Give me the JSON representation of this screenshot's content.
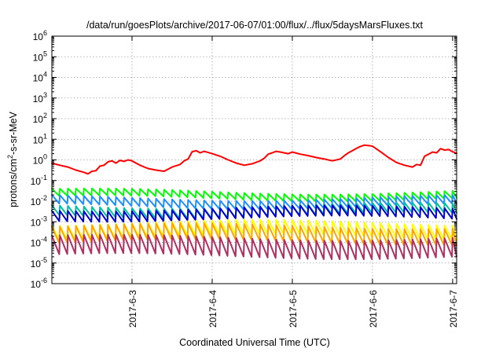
{
  "chart_data": {
    "type": "line",
    "title": "/data/run/goesPlots/archive/2017-06-07/01:00/flux/../flux/5daysMarsFluxes.txt",
    "xlabel": "Coordinated Universal Time (UTC)",
    "ylabel": "protons/cm²-s-sr-MeV",
    "ylabel_main": "protons/cm",
    "ylabel_sup": "2",
    "ylabel_rest": "-s-sr-MeV",
    "x_ticks": [
      "2017-6-3",
      "2017-6-4",
      "2017-6-5",
      "2017-6-6",
      "2017-6-7"
    ],
    "x_range_days": [
      2.0,
      7.05
    ],
    "y_scale": "log",
    "ylim": [
      1e-06,
      1000000.0
    ],
    "y_tick_exponents": [
      -6,
      -5,
      -4,
      -3,
      -2,
      -1,
      0,
      1,
      2,
      3,
      4,
      5,
      6
    ],
    "y_tick_base": "10",
    "grid": true,
    "legend": "none",
    "series": [
      {
        "color": "#ff0000",
        "x": [
          2.0,
          2.1,
          2.2,
          2.3,
          2.4,
          2.45,
          2.5,
          2.55,
          2.6,
          2.65,
          2.7,
          2.75,
          2.8,
          2.85,
          2.9,
          2.95,
          3.0,
          3.05,
          3.1,
          3.2,
          3.3,
          3.4,
          3.5,
          3.6,
          3.65,
          3.7,
          3.75,
          3.8,
          3.85,
          3.9,
          4.0,
          4.1,
          4.2,
          4.3,
          4.4,
          4.5,
          4.6,
          4.65,
          4.7,
          4.75,
          4.8,
          4.85,
          4.9,
          4.95,
          5.0,
          5.1,
          5.2,
          5.3,
          5.4,
          5.5,
          5.6,
          5.65,
          5.7,
          5.75,
          5.8,
          5.85,
          5.9,
          5.95,
          6.0,
          6.1,
          6.2,
          6.3,
          6.4,
          6.5,
          6.55,
          6.6,
          6.65,
          6.7,
          6.75,
          6.8,
          6.85,
          6.9,
          6.95,
          7.0,
          7.05
        ],
        "values": [
          0.7,
          0.55,
          0.45,
          0.32,
          0.25,
          0.21,
          0.28,
          0.3,
          0.5,
          0.55,
          0.8,
          0.9,
          0.7,
          0.95,
          0.85,
          1.0,
          0.9,
          0.7,
          0.55,
          0.38,
          0.32,
          0.28,
          0.45,
          0.6,
          0.9,
          1.1,
          2.5,
          2.8,
          2.2,
          2.6,
          2.0,
          1.5,
          1.0,
          0.7,
          0.55,
          0.65,
          0.9,
          1.2,
          1.9,
          2.2,
          2.6,
          2.4,
          2.2,
          2.0,
          2.4,
          1.9,
          1.6,
          1.3,
          1.1,
          0.9,
          1.1,
          1.6,
          2.2,
          2.8,
          3.6,
          4.5,
          5.2,
          5.0,
          4.6,
          2.5,
          1.3,
          0.75,
          0.55,
          0.45,
          0.6,
          0.55,
          1.5,
          1.9,
          2.4,
          2.2,
          3.5,
          3.0,
          3.2,
          2.5,
          2.1
        ]
      },
      {
        "color": "#00ff00",
        "base": 0.02,
        "amp": 2.2
      },
      {
        "color": "#1f8fff",
        "base": 0.009,
        "amp": 2.6
      },
      {
        "color": "#00c0a0",
        "base": 0.0035,
        "amp": 3.0
      },
      {
        "color": "#0000cd",
        "base": 0.0025,
        "amp": 3.2
      },
      {
        "color": "#ffff00",
        "base": 0.0004,
        "amp": 5.0
      },
      {
        "color": "#ffa500",
        "base": 0.00025,
        "amp": 6.0
      },
      {
        "color": "#b03060",
        "base": 6e-05,
        "amp": 8.0
      }
    ]
  }
}
